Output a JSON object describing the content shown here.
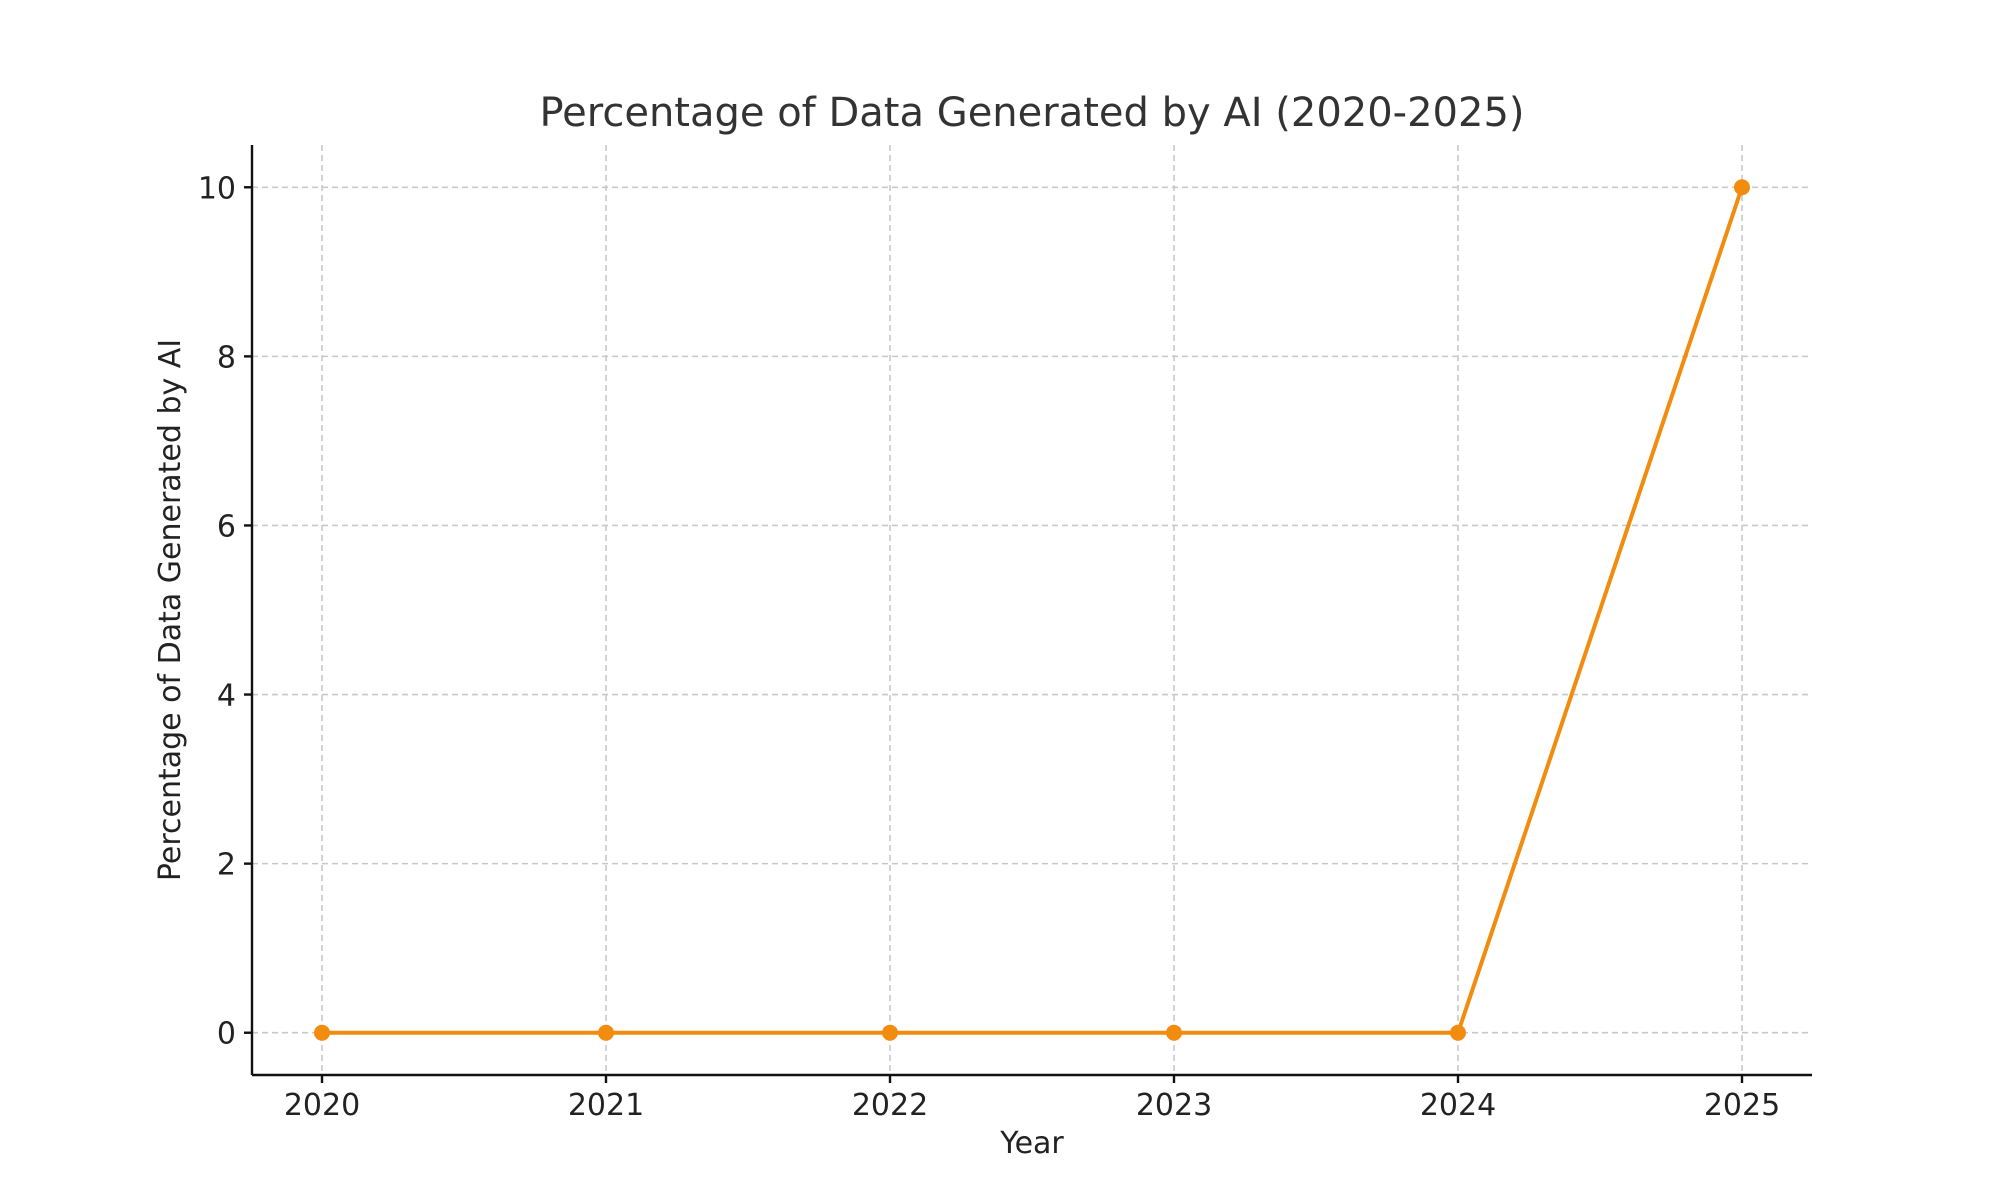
{
  "chart_data": {
    "type": "line",
    "title": "Percentage of Data Generated by AI (2020-2025)",
    "xlabel": "Year",
    "ylabel": "Percentage of Data Generated by AI",
    "categories": [
      "2020",
      "2021",
      "2022",
      "2023",
      "2024",
      "2025"
    ],
    "series": [
      {
        "values": [
          0,
          0,
          0,
          0,
          0,
          10
        ],
        "color": "#f28c0f",
        "marker": "circle"
      }
    ],
    "yticks": [
      0,
      2,
      4,
      6,
      8,
      10
    ],
    "ylim": [
      -0.5,
      10.5
    ],
    "grid": true
  }
}
